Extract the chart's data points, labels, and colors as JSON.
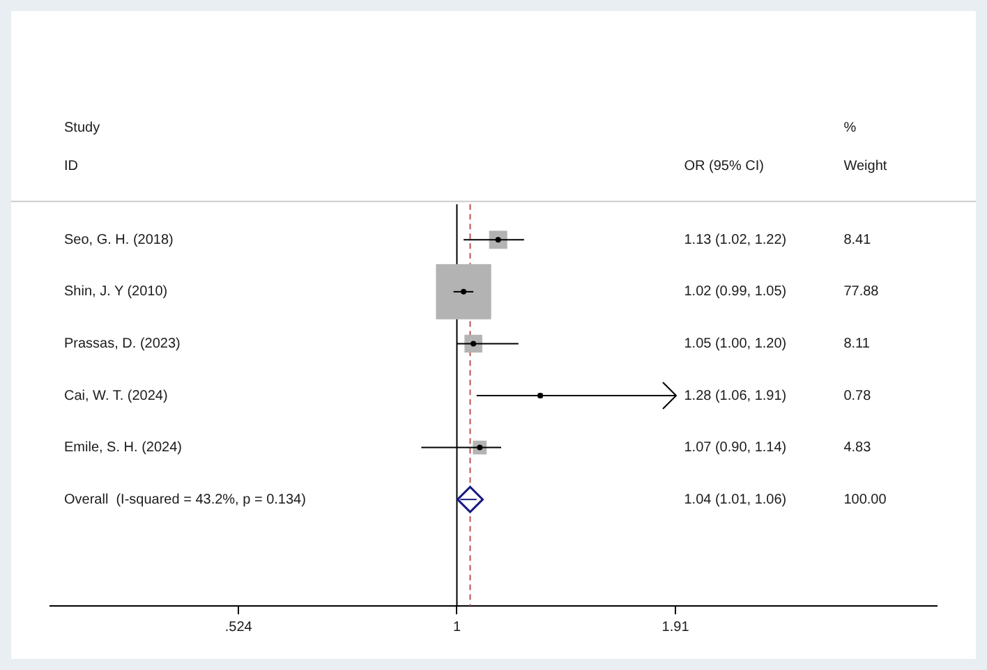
{
  "chart_data": {
    "type": "bubble",
    "orientation": "horizontal",
    "log": "x",
    "xlim": [
      0.3,
      4.14
    ],
    "xticks": [
      {
        "value": 0.524,
        "label": ".524"
      },
      1,
      1.91
    ],
    "grid": false,
    "legend": false,
    "categories": [
      "Seo, G. H. (2018)",
      "Shin, J. Y (2010)",
      "Prassas, D. (2023)",
      "Cai, W. T. (2024)",
      "Emile, S. H. (2024)",
      "Overall  (I-squared = 43.2%, p = 0.134)"
    ],
    "series": [
      {
        "marker": "square",
        "color": "#b3b3b3",
        "values": [
          1.13,
          1.02,
          1.05,
          1.28,
          1.07,
          null
        ],
        "errors": [
          [
            1.02,
            1.22
          ],
          [
            0.99,
            1.05
          ],
          [
            1.0,
            1.2
          ],
          [
            1.06,
            1.91
          ],
          [
            0.9,
            1.14
          ],
          null
        ],
        "sizes": [
          0.108,
          1,
          0.104,
          0.01,
          0.062,
          null
        ]
      },
      {
        "type": "scatter",
        "marker": "diamond",
        "color": "#1a1a80",
        "values": [
          null,
          null,
          null,
          null,
          null,
          1.04
        ],
        "errors": [
          null,
          null,
          null,
          null,
          null,
          [
            1.01,
            1.06
          ]
        ]
      }
    ],
    "ref_lines": [
      {
        "axis": "x",
        "value": 1,
        "color": "#000000",
        "line_style": "solid"
      },
      {
        "axis": "x",
        "value": 1.04,
        "color": "#c05050",
        "line_style": "dashed"
      }
    ],
    "annotations": [
      "Study",
      "ID",
      "OR (95% CI)",
      "%",
      "Weight",
      "1.13 (1.02, 1.22)",
      "1.02 (0.99, 1.05)",
      "1.05 (1.00, 1.20)",
      "1.28 (1.06, 1.91)",
      "1.07 (0.90, 1.14)",
      "1.04 (1.01, 1.06)",
      "8.41",
      "77.88",
      "8.11",
      "0.78",
      "4.83",
      "100.00"
    ]
  }
}
